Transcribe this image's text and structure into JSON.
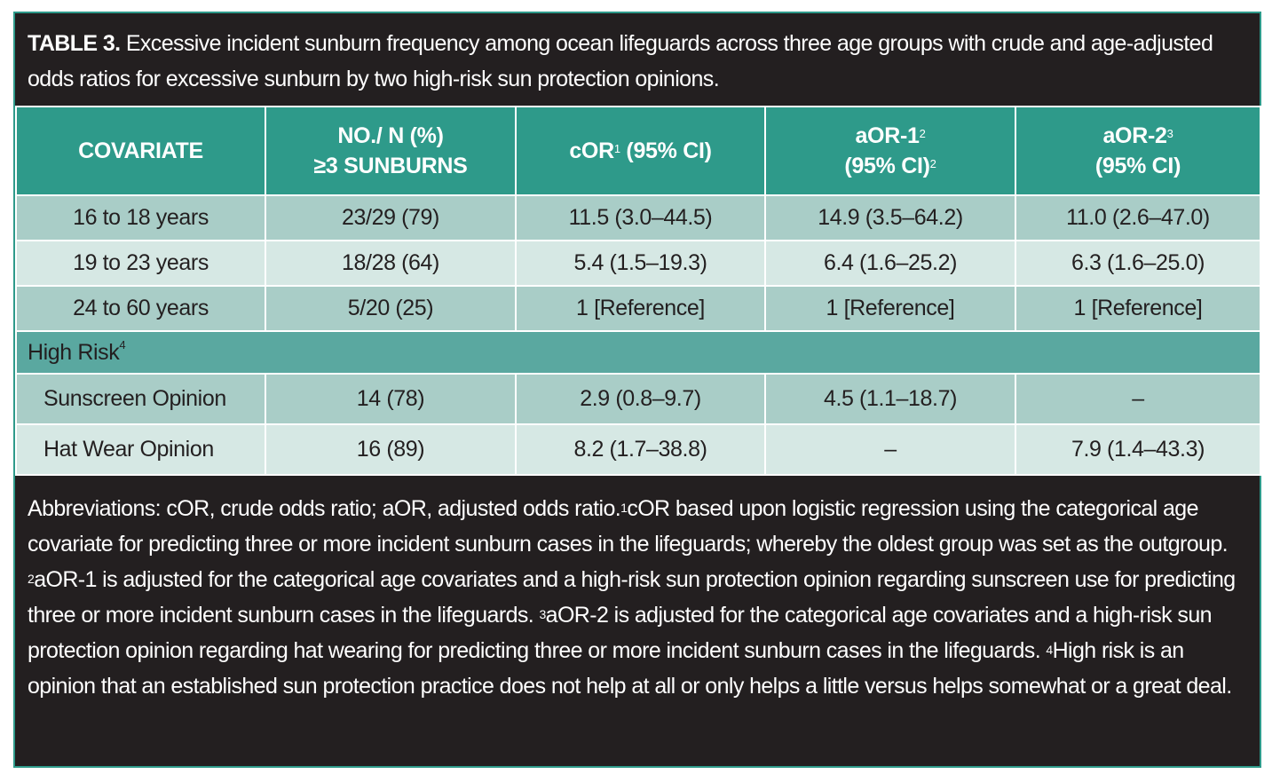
{
  "caption": {
    "lead": "TABLE 3.",
    "text": " Excessive incident sunburn frequency among ocean lifeguards across three age groups with crude and age-adjusted odds ratios for excessive sunburn by two high-risk sun protection opinions."
  },
  "table": {
    "headers": {
      "covariate": "COVARIATE",
      "no_line1": "NO./ N (%)",
      "no_line2": "≥3 SUNBURNS",
      "cor": "cOR",
      "cor_sup": "1",
      "cor_ci": " (95% CI)",
      "aor1": "aOR-1",
      "aor1_sup": "2",
      "aor1_ci": "(95% CI)",
      "aor1_ci_sup": "2",
      "aor2": "aOR-2",
      "aor2_sup": "3",
      "aor2_ci": "(95% CI)"
    },
    "age_rows": [
      {
        "label": "16 to 18 years",
        "n": "23/29 (79)",
        "cor": "11.5 (3.0–44.5)",
        "aor1": "14.9 (3.5–64.2)",
        "aor2": "11.0 (2.6–47.0)"
      },
      {
        "label": "19 to 23 years",
        "n": "18/28 (64)",
        "cor": "5.4 (1.5–19.3)",
        "aor1": "6.4 (1.6–25.2)",
        "aor2": "6.3 (1.6–25.0)"
      },
      {
        "label": "24 to 60 years",
        "n": "5/20 (25)",
        "cor": "1 [Reference]",
        "aor1": "1 [Reference]",
        "aor2": "1 [Reference]"
      }
    ],
    "section": {
      "label": "High Risk",
      "sup": "4"
    },
    "risk_rows": [
      {
        "label": "Sunscreen Opinion",
        "n": "14 (78)",
        "cor": "2.9 (0.8–9.7)",
        "aor1": "4.5 (1.1–18.7)",
        "aor2": "–"
      },
      {
        "label": "Hat Wear Opinion",
        "n": "16 (89)",
        "cor": "8.2 (1.7–38.8)",
        "aor1": "–",
        "aor2": "7.9 (1.4–43.3)"
      }
    ]
  },
  "footnote": {
    "p1": "Abbreviations: cOR, crude odds ratio; aOR, adjusted odds ratio.",
    "s1": "1",
    "p2": "cOR based upon logistic regression using the categorical age covariate for predicting three or more incident sunburn cases in the lifeguards; whereby the oldest group was set as the outgroup. ",
    "s2": "2",
    "p3": "aOR-1 is adjusted for the categorical age covariates and a high-risk sun protection opinion regarding sunscreen use for predicting three or more incident sunburn cases in the lifeguards. ",
    "s3": "3",
    "p4": "aOR-2 is adjusted for the categorical age covariates and a high-risk sun protection opinion regarding hat wearing for predicting three or more incident sunburn cases in the lifeguards. ",
    "s4": "4",
    "p5": "High risk is an opinion that an established sun protection practice does not help at all or only helps a little versus helps somewhat or a great deal."
  }
}
